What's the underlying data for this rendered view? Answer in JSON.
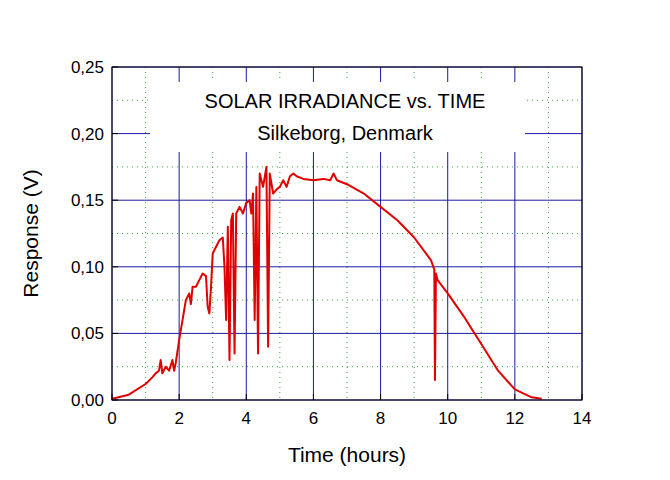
{
  "chart_data": {
    "type": "line",
    "title": "SOLAR IRRADIANCE vs. TIME",
    "subtitle": "Silkeborg, Denmark",
    "x_label": "Time (hours)",
    "y_label": "Response (V)",
    "xlim": [
      0,
      14
    ],
    "ylim": [
      0,
      0.25
    ],
    "xticks": [
      0,
      2,
      4,
      6,
      8,
      10,
      12,
      14
    ],
    "yticks": [
      {
        "value": 0,
        "label": "0,00"
      },
      {
        "value": 0.05,
        "label": "0,05"
      },
      {
        "value": 0.1,
        "label": "0,10"
      },
      {
        "value": 0.15,
        "label": "0,15"
      },
      {
        "value": 0.2,
        "label": "0,20"
      },
      {
        "value": 0.25,
        "label": "0,25"
      }
    ],
    "grid": true,
    "x": [
      0,
      0.5,
      1.0,
      1.2,
      1.3,
      1.4,
      1.45,
      1.5,
      1.6,
      1.7,
      1.8,
      1.85,
      1.9,
      2.0,
      2.1,
      2.2,
      2.3,
      2.35,
      2.4,
      2.5,
      2.6,
      2.7,
      2.8,
      2.85,
      2.9,
      2.95,
      3.0,
      3.1,
      3.2,
      3.3,
      3.35,
      3.4,
      3.45,
      3.5,
      3.55,
      3.6,
      3.65,
      3.7,
      3.8,
      3.9,
      4.0,
      4.1,
      4.15,
      4.2,
      4.25,
      4.3,
      4.35,
      4.4,
      4.5,
      4.6,
      4.65,
      4.7,
      4.8,
      4.9,
      5.0,
      5.1,
      5.2,
      5.3,
      5.4,
      5.5,
      5.7,
      6.0,
      6.3,
      6.5,
      6.6,
      6.7,
      7.0,
      7.5,
      8.0,
      8.5,
      9.0,
      9.5,
      9.6,
      9.62,
      9.65,
      9.7,
      10.0,
      10.5,
      11.0,
      11.5,
      12.0,
      12.5,
      12.8
    ],
    "series": [
      {
        "name": "Response",
        "color": "#e00000",
        "values": [
          0.001,
          0.004,
          0.012,
          0.017,
          0.02,
          0.022,
          0.03,
          0.02,
          0.025,
          0.022,
          0.03,
          0.022,
          0.028,
          0.045,
          0.06,
          0.075,
          0.08,
          0.072,
          0.085,
          0.085,
          0.09,
          0.095,
          0.093,
          0.07,
          0.065,
          0.085,
          0.11,
          0.115,
          0.12,
          0.122,
          0.1,
          0.06,
          0.13,
          0.03,
          0.135,
          0.14,
          0.035,
          0.14,
          0.145,
          0.14,
          0.148,
          0.15,
          0.14,
          0.155,
          0.06,
          0.16,
          0.035,
          0.17,
          0.16,
          0.175,
          0.04,
          0.17,
          0.155,
          0.158,
          0.16,
          0.165,
          0.16,
          0.168,
          0.17,
          0.168,
          0.166,
          0.165,
          0.166,
          0.165,
          0.17,
          0.165,
          0.162,
          0.155,
          0.145,
          0.135,
          0.122,
          0.105,
          0.098,
          0.015,
          0.095,
          0.09,
          0.08,
          0.062,
          0.042,
          0.022,
          0.008,
          0.002,
          0.001
        ]
      }
    ]
  }
}
